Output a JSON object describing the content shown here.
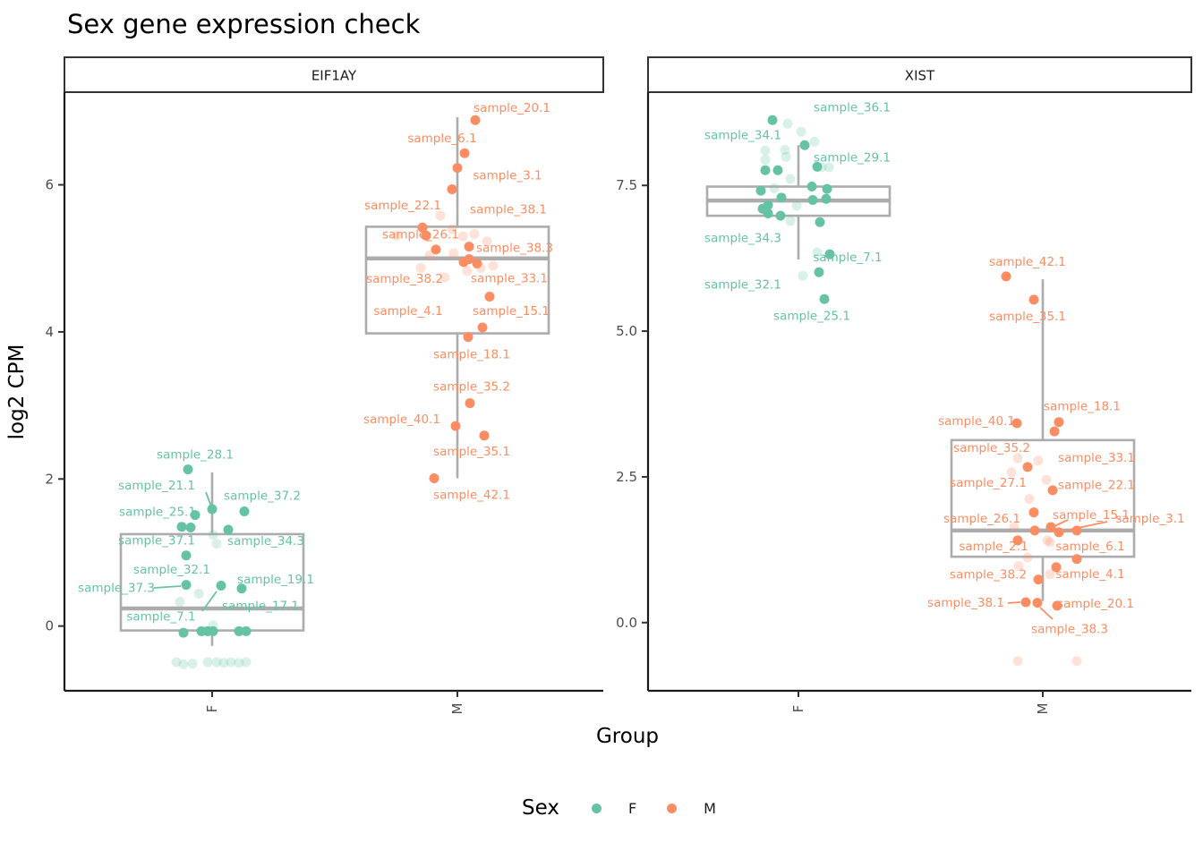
{
  "chart_data": {
    "type": "boxplot-jitter",
    "title": "Sex gene expression check",
    "xlabel": "Group",
    "ylabel": "log2 CPM",
    "legend": {
      "title": "Sex",
      "entries": [
        {
          "label": "F",
          "color": "#66C2A5"
        },
        {
          "label": "M",
          "color": "#FC8D62"
        }
      ]
    },
    "colors": {
      "F": "#66C2A5",
      "M": "#FC8D62",
      "box": "#ACACAC",
      "axis": "#1A1A1A",
      "tick_text": "#4D4D4D",
      "strip_border": "#333333"
    },
    "points_format": "[log2cpm_value, x_jitter_px, label_or_null, label_dx_px, label_dy_px]",
    "faint_format": "[log2cpm_value, x_jitter_px]",
    "leader_format": "[x1,y1,x2,y2] in page px",
    "facets": [
      {
        "name": "EIF1AY",
        "y_domain": [
          -0.88,
          7.26
        ],
        "y_ticks": [
          {
            "v": 0,
            "label": "0"
          },
          {
            "v": 2,
            "label": "2"
          },
          {
            "v": 4,
            "label": "4"
          },
          {
            "v": 6,
            "label": "6"
          }
        ],
        "groups": [
          {
            "x_label": "F",
            "sex": "F",
            "box": {
              "lo": -0.27,
              "q1": -0.06,
              "med": 0.24,
              "q3": 1.25,
              "hi": 2.09
            },
            "points": [
              [
                2.13,
                -27,
                "sample_28.1",
                8,
                -16
              ],
              [
                1.59,
                0,
                "sample_21.1",
                -62,
                -26
              ],
              [
                1.56,
                36,
                "sample_37.2",
                20,
                -17
              ],
              [
                1.51,
                -19,
                "sample_25.1",
                -42,
                -3
              ],
              [
                1.35,
                -34,
                "sample_37.1",
                -28,
                16
              ],
              [
                1.34,
                -24,
                null,
                0,
                0
              ],
              [
                1.31,
                18,
                "sample_34.3",
                42,
                13
              ],
              [
                0.96,
                -29,
                "sample_32.1",
                -16,
                16
              ],
              [
                0.56,
                -29,
                "sample_37.3",
                -78,
                4
              ],
              [
                0.55,
                10,
                "sample_7.1",
                -67,
                35
              ],
              [
                0.51,
                33,
                "sample_19.1",
                38,
                -10
              ],
              [
                -0.09,
                -32,
                null,
                0,
                0
              ],
              [
                -0.07,
                -12,
                "sample_17.1",
                66,
                -28
              ],
              [
                -0.07,
                -5,
                null,
                0,
                0
              ],
              [
                -0.07,
                1,
                null,
                0,
                0
              ],
              [
                -0.07,
                30,
                null,
                0,
                0
              ],
              [
                -0.07,
                38,
                null,
                0,
                0
              ]
            ],
            "faint": [
              [
                1.24,
                1
              ],
              [
                1.12,
                5
              ],
              [
                0.44,
                -15
              ],
              [
                0.33,
                -36
              ],
              [
                0.01,
                1
              ],
              [
                -0.49,
                -40
              ],
              [
                -0.52,
                -32
              ],
              [
                -0.51,
                -22
              ],
              [
                -0.49,
                -5
              ],
              [
                -0.49,
                5
              ],
              [
                -0.5,
                13
              ],
              [
                -0.49,
                21
              ],
              [
                -0.5,
                30
              ],
              [
                -0.49,
                38
              ]
            ],
            "leaders": [
              [
                230,
                550,
                236,
                566
              ],
              [
                172,
                657,
                202,
                655
              ],
              [
                226,
                683,
                242,
                661
              ]
            ]
          },
          {
            "x_label": "M",
            "sex": "M",
            "box": {
              "lo": 2.01,
              "q1": 3.98,
              "med": 5.0,
              "q3": 5.43,
              "hi": 6.92
            },
            "points": [
              [
                6.88,
                20,
                "sample_20.1",
                41,
                -13
              ],
              [
                6.43,
                8,
                "sample_6.1",
                -25,
                -16
              ],
              [
                6.23,
                0,
                "sample_3.1",
                56,
                9
              ],
              [
                5.94,
                -6,
                null,
                0,
                0
              ],
              [
                5.42,
                -39,
                "sample_22.1",
                -22,
                -24
              ],
              [
                5.31,
                -35,
                "sample_26.1",
                -6,
                -1
              ],
              [
                5.16,
                13,
                "sample_38.1",
                44,
                -41
              ],
              [
                5.12,
                -24,
                "sample_38.2",
                -35,
                33
              ],
              [
                4.99,
                13,
                "sample_38.3",
                51,
                -12
              ],
              [
                4.95,
                7,
                "sample_4.1",
                -62,
                55
              ],
              [
                4.93,
                22,
                null,
                0,
                0
              ],
              [
                4.48,
                36,
                "sample_33.1",
                22,
                -20
              ],
              [
                4.06,
                28,
                "sample_15.1",
                32,
                -18
              ],
              [
                3.93,
                12,
                "sample_18.1",
                4,
                20
              ],
              [
                3.03,
                14,
                "sample_35.2",
                2,
                -18
              ],
              [
                2.72,
                -2,
                "sample_40.1",
                -60,
                -7
              ],
              [
                2.59,
                30,
                "sample_35.1",
                -14,
                18
              ],
              [
                2.01,
                -26,
                "sample_42.1",
                42,
                19
              ]
            ],
            "faint": [
              [
                5.58,
                -19
              ],
              [
                5.4,
                -6
              ],
              [
                5.3,
                6
              ],
              [
                5.33,
                19
              ],
              [
                5.23,
                33
              ],
              [
                5.04,
                -31
              ],
              [
                5.07,
                -4
              ],
              [
                4.83,
                11
              ],
              [
                4.87,
                26
              ],
              [
                4.9,
                40
              ],
              [
                4.87,
                -41
              ],
              [
                4.74,
                -14
              ],
              [
                5.31,
                -68
              ]
            ],
            "leaders": []
          }
        ]
      },
      {
        "name": "XIST",
        "y_domain": [
          -1.17,
          9.1
        ],
        "y_ticks": [
          {
            "v": 0,
            "label": "0.0"
          },
          {
            "v": 2.5,
            "label": "2.5"
          },
          {
            "v": 5,
            "label": "5.0"
          },
          {
            "v": 7.5,
            "label": "7.5"
          }
        ],
        "groups": [
          {
            "x_label": "F",
            "sex": "F",
            "box": {
              "lo": 6.23,
              "q1": 6.98,
              "med": 7.24,
              "q3": 7.48,
              "hi": 8.19
            },
            "points": [
              [
                8.62,
                -29,
                "sample_36.1",
                89,
                -14
              ],
              [
                8.19,
                7,
                null,
                0,
                0
              ],
              [
                7.82,
                21,
                "sample_29.1",
                39,
                -10
              ],
              [
                7.76,
                -37,
                "sample_34.1",
                -25,
                -39
              ],
              [
                7.76,
                -23,
                null,
                0,
                0
              ],
              [
                7.48,
                15,
                null,
                0,
                0
              ],
              [
                7.44,
                32,
                null,
                0,
                0
              ],
              [
                7.41,
                -42,
                null,
                0,
                0
              ],
              [
                7.29,
                -19,
                null,
                0,
                0
              ],
              [
                7.27,
                31,
                null,
                0,
                0
              ],
              [
                7.25,
                16,
                null,
                0,
                0
              ],
              [
                7.16,
                -34,
                null,
                0,
                0
              ],
              [
                7.1,
                -40,
                null,
                0,
                0
              ],
              [
                7.02,
                -34,
                "sample_34.3",
                -28,
                28
              ],
              [
                6.98,
                -20,
                null,
                0,
                0
              ],
              [
                6.87,
                24,
                null,
                0,
                0
              ],
              [
                6.32,
                35,
                "sample_7.1",
                20,
                4
              ],
              [
                6.01,
                23,
                "sample_32.1",
                -85,
                14
              ],
              [
                5.55,
                29,
                "sample_25.1",
                -14,
                19
              ]
            ],
            "faint": [
              [
                8.56,
                -12
              ],
              [
                8.42,
                3
              ],
              [
                8.25,
                18
              ],
              [
                8.1,
                -37
              ],
              [
                8.11,
                -15
              ],
              [
                7.99,
                -14
              ],
              [
                7.94,
                -37
              ],
              [
                7.81,
                26
              ],
              [
                7.81,
                34
              ],
              [
                7.61,
                -9
              ],
              [
                7.45,
                -27
              ],
              [
                7.15,
                -2
              ],
              [
                6.89,
                -9
              ],
              [
                6.35,
                21
              ],
              [
                5.95,
                5
              ]
            ],
            "leaders": []
          },
          {
            "x_label": "M",
            "sex": "M",
            "box": {
              "lo": 0.37,
              "q1": 1.13,
              "med": 1.58,
              "q3": 3.13,
              "hi": 5.89
            },
            "points": [
              [
                5.94,
                -41,
                "sample_42.1",
                24,
                -16
              ],
              [
                5.54,
                -10,
                "sample_35.1",
                -7,
                19
              ],
              [
                3.44,
                18,
                "sample_18.1",
                26,
                -17
              ],
              [
                3.42,
                -29,
                "sample_40.1",
                -45,
                -2
              ],
              [
                3.28,
                13,
                "sample_35.2",
                -70,
                19
              ],
              [
                2.67,
                -17,
                "sample_27.1",
                -44,
                18
              ],
              [
                2.27,
                11,
                "sample_33.1",
                49,
                -36
              ],
              [
                1.89,
                -10,
                "sample_22.1",
                70,
                -30
              ],
              [
                1.64,
                9,
                "sample_15.1",
                45,
                -13
              ],
              [
                1.58,
                -9,
                "sample_26.1",
                -59,
                -13
              ],
              [
                1.58,
                38,
                null,
                0,
                0
              ],
              [
                1.55,
                18,
                "sample_3.1",
                102,
                -15
              ],
              [
                1.41,
                -28,
                "sample_2.1",
                -27,
                7
              ],
              [
                1.09,
                38,
                "sample_6.1",
                15,
                -14
              ],
              [
                0.95,
                15,
                "sample_4.1",
                38,
                8
              ],
              [
                0.74,
                -5,
                "sample_38.2",
                -56,
                -5
              ],
              [
                0.35,
                -19,
                "sample_38.1",
                -67,
                1
              ],
              [
                0.34,
                -6,
                "sample_38.3",
                36,
                30
              ],
              [
                0.29,
                16,
                "sample_20.1",
                43,
                -2
              ]
            ],
            "faint": [
              [
                2.82,
                -28
              ],
              [
                2.78,
                -5
              ],
              [
                2.58,
                -35
              ],
              [
                2.45,
                4
              ],
              [
                2.12,
                -15
              ],
              [
                1.64,
                -32
              ],
              [
                1.41,
                5
              ],
              [
                1.38,
                8
              ],
              [
                1.12,
                -17
              ],
              [
                0.97,
                -27
              ],
              [
                0.83,
                8
              ],
              [
                -0.66,
                -28
              ],
              [
                -0.66,
                38
              ]
            ],
            "leaders": [
              [
                1193,
                581,
                1178,
                588
              ],
              [
                1237,
                583,
                1190,
                593
              ],
              [
                1126,
                674,
                1140,
                673
              ],
              [
                1176,
                692,
                1162,
                679
              ]
            ]
          }
        ]
      }
    ]
  }
}
